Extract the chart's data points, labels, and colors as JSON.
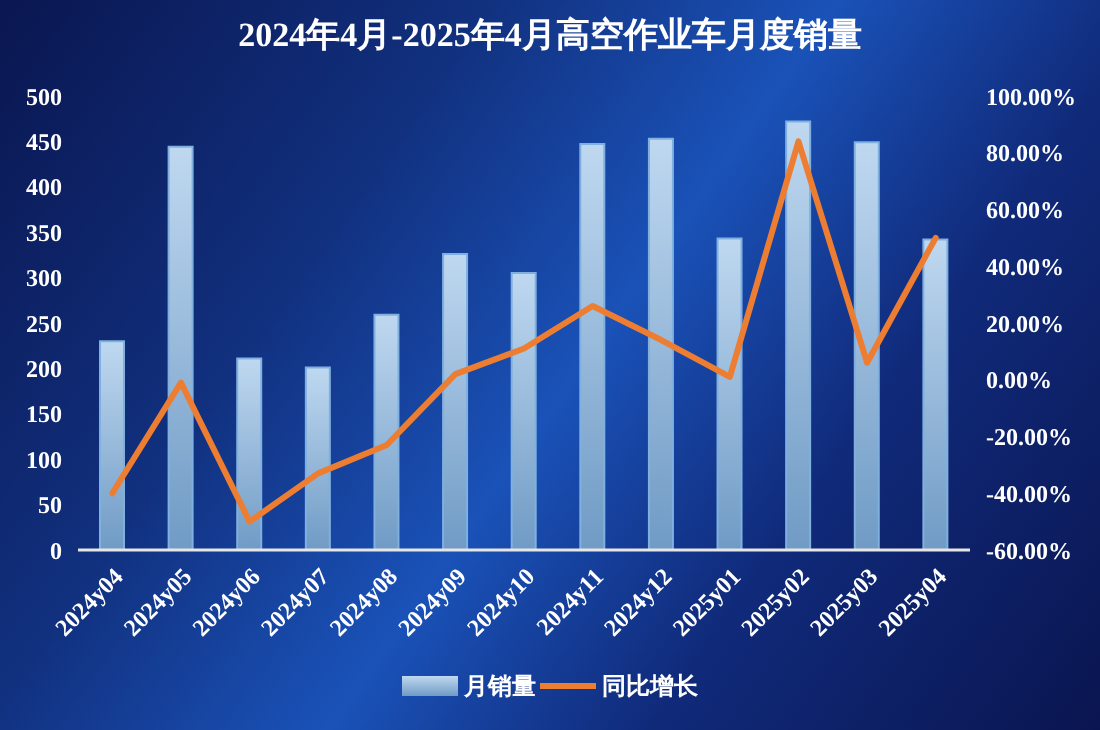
{
  "chart_data": {
    "type": "bar",
    "title": "2024年4月-2025年4月高空作业车月度销量",
    "categories": [
      "2024y04",
      "2024y05",
      "2024y06",
      "2024y07",
      "2024y08",
      "2024y09",
      "2024y10",
      "2024y11",
      "2024y12",
      "2025y01",
      "2025y02",
      "2025y03",
      "2025y04"
    ],
    "series": [
      {
        "name": "月销量",
        "color": "#7fb0e0",
        "values": [
          230,
          444,
          211,
          201,
          259,
          326,
          305,
          447,
          453,
          343,
          472,
          449,
          342
        ]
      },
      {
        "name": "同比增长",
        "type": "line",
        "axis": "y2",
        "color": "#ed7d31",
        "values": [
          -40,
          -1,
          -50,
          -33,
          -23,
          2,
          11,
          26,
          14,
          1,
          84,
          6,
          50
        ]
      }
    ],
    "ylim": [
      0,
      500
    ],
    "yticks": [
      0,
      50,
      100,
      150,
      200,
      250,
      300,
      350,
      400,
      450,
      500
    ],
    "y2lim": [
      -60,
      100
    ],
    "y2ticks": [
      {
        "value": -60,
        "label": "-60.00%"
      },
      {
        "value": -40,
        "label": "-40.00%"
      },
      {
        "value": -20,
        "label": "-20.00%"
      },
      {
        "value": 0,
        "label": "0.00%"
      },
      {
        "value": 20,
        "label": "20.00%"
      },
      {
        "value": 40,
        "label": "40.00%"
      },
      {
        "value": 60,
        "label": "60.00%"
      },
      {
        "value": 80,
        "label": "80.00%"
      },
      {
        "value": 100,
        "label": "100.00%"
      }
    ],
    "grid": false,
    "legend": "bottom",
    "marker": "none"
  }
}
